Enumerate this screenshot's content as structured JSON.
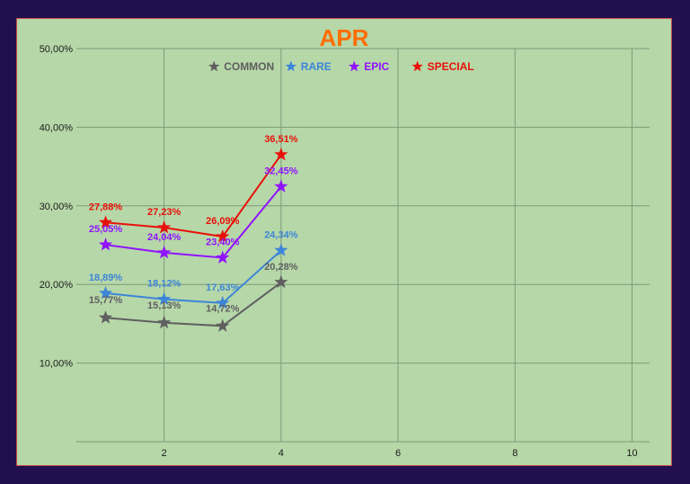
{
  "chart_data": {
    "type": "line",
    "title": "APR",
    "xlabel": "",
    "ylabel": "",
    "xlim": [
      0.5,
      10.3
    ],
    "ylim": [
      0,
      50
    ],
    "x_ticks": [
      {
        "value": 2,
        "label": "2"
      },
      {
        "value": 4,
        "label": "4"
      },
      {
        "value": 6,
        "label": "6"
      },
      {
        "value": 8,
        "label": "8"
      },
      {
        "value": 10,
        "label": "10"
      }
    ],
    "y_ticks": [
      {
        "value": 10,
        "label": "10,00%"
      },
      {
        "value": 20,
        "label": "20,00%"
      },
      {
        "value": 30,
        "label": "30,00%"
      },
      {
        "value": 40,
        "label": "40,00%"
      },
      {
        "value": 50,
        "label": "50,00%"
      }
    ],
    "grid": true,
    "legend_position": "top",
    "x": [
      1,
      2,
      3,
      4
    ],
    "series": [
      {
        "name": "COMMON",
        "color": "#5f5f5f",
        "values": [
          15.77,
          15.13,
          14.72,
          20.28
        ],
        "labels": [
          "15,77%",
          "15,13%",
          "14,72%",
          "20,28%"
        ],
        "label_side": [
          "below",
          "below",
          "below",
          "above"
        ]
      },
      {
        "name": "RARE",
        "color": "#3d85d8",
        "values": [
          18.89,
          18.12,
          17.63,
          24.34
        ],
        "labels": [
          "18,89%",
          "18,12%",
          "17,63%",
          "24,34%"
        ],
        "label_side": [
          "above",
          "above",
          "above",
          "above"
        ]
      },
      {
        "name": "EPIC",
        "color": "#9013fe",
        "values": [
          25.05,
          24.04,
          23.4,
          32.45
        ],
        "labels": [
          "25,05%",
          "24,04%",
          "23,40%",
          "32,45%"
        ],
        "label_side": [
          "above",
          "above",
          "above",
          "above"
        ]
      },
      {
        "name": "SPECIAL",
        "color": "#e8110a",
        "values": [
          27.88,
          27.23,
          26.09,
          36.51
        ],
        "labels": [
          "27,88%",
          "27,23%",
          "26,09%",
          "36,51%"
        ],
        "label_side": [
          "above",
          "above",
          "above",
          "above"
        ]
      }
    ],
    "colors": {
      "title": "#ff6d01",
      "grid": "#7f9a78",
      "background": "#b6d7a8"
    }
  }
}
